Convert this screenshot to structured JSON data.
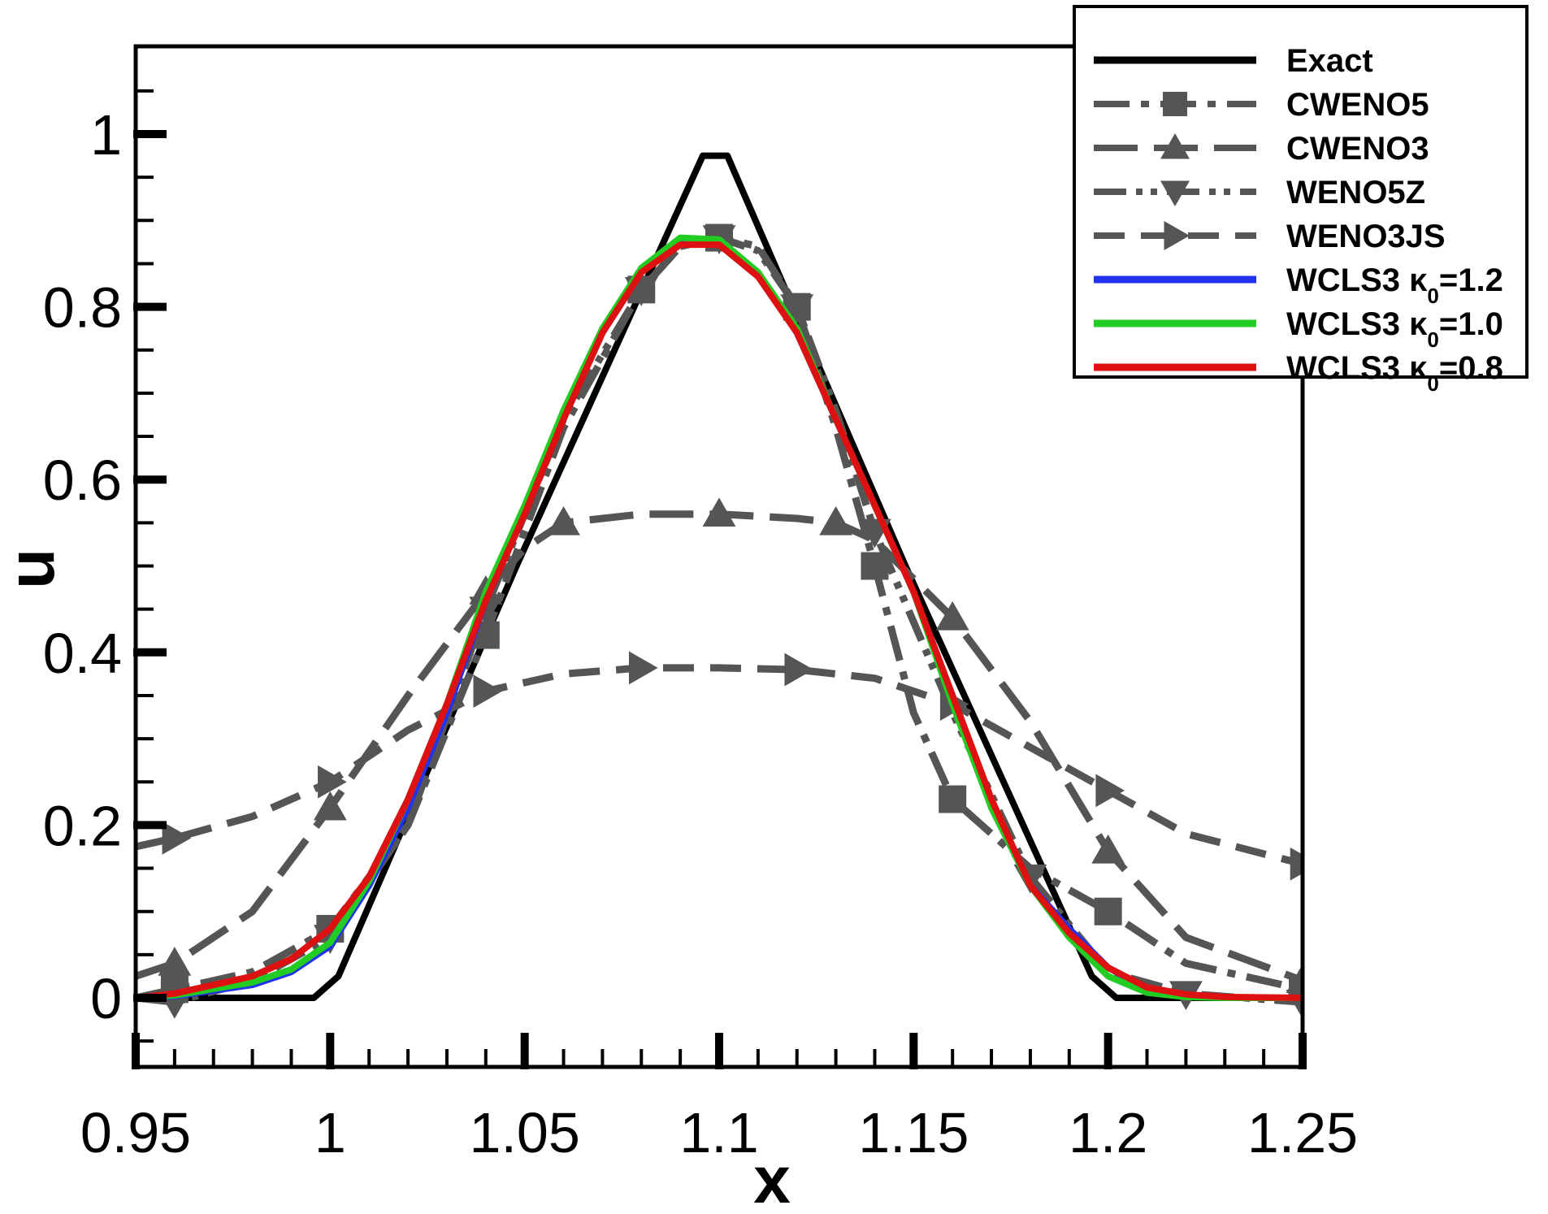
{
  "chart_data": {
    "type": "line",
    "title": "",
    "xlabel": "x",
    "ylabel": "u",
    "xlim": [
      0.95,
      1.25
    ],
    "ylim": [
      -0.08,
      1.1
    ],
    "x_ticks": [
      0.95,
      1.0,
      1.05,
      1.1,
      1.15,
      1.2,
      1.25
    ],
    "x_tick_labels": [
      "0.95",
      "1",
      "1.05",
      "1.1",
      "1.15",
      "1.2",
      "1.25"
    ],
    "y_ticks": [
      0,
      0.2,
      0.4,
      0.6,
      0.8,
      1.0
    ],
    "y_tick_labels": [
      "0",
      "0.2",
      "0.4",
      "0.6",
      "0.8",
      "1"
    ],
    "legend_position": "top-right",
    "series": [
      {
        "name": "Exact",
        "color": "#000000",
        "dash": "solid",
        "marker": "none",
        "x": [
          0.95,
          0.9958,
          1.0021,
          1.0479,
          1.0958,
          1.1021,
          1.1479,
          1.1958,
          1.2021,
          1.25
        ],
        "y": [
          0.0,
          0.0,
          0.025,
          0.5,
          0.975,
          0.975,
          0.5,
          0.025,
          0.0,
          0.0
        ]
      },
      {
        "name": "CWENO5",
        "color": "#555555",
        "dash": "dashdot",
        "marker": "square",
        "x": [
          0.95,
          0.96,
          0.98,
          1.0,
          1.02,
          1.04,
          1.06,
          1.08,
          1.09,
          1.1,
          1.11,
          1.12,
          1.13,
          1.14,
          1.15,
          1.16,
          1.18,
          1.2,
          1.22,
          1.25
        ],
        "y": [
          0.0,
          0.01,
          0.03,
          0.08,
          0.2,
          0.42,
          0.66,
          0.82,
          0.87,
          0.88,
          0.87,
          0.8,
          0.66,
          0.5,
          0.33,
          0.23,
          0.15,
          0.1,
          0.04,
          0.01
        ]
      },
      {
        "name": "CWENO3",
        "color": "#555555",
        "dash": "longdash",
        "marker": "triangle-up",
        "x": [
          0.95,
          0.96,
          0.98,
          1.0,
          1.02,
          1.04,
          1.05,
          1.06,
          1.08,
          1.1,
          1.12,
          1.13,
          1.14,
          1.16,
          1.18,
          1.2,
          1.22,
          1.25
        ],
        "y": [
          0.025,
          0.04,
          0.1,
          0.22,
          0.35,
          0.47,
          0.52,
          0.55,
          0.56,
          0.56,
          0.555,
          0.55,
          0.53,
          0.44,
          0.32,
          0.17,
          0.07,
          0.02
        ]
      },
      {
        "name": "WENO5Z",
        "color": "#555555",
        "dash": "dashdotdot",
        "marker": "triangle-down",
        "x": [
          0.95,
          0.96,
          0.98,
          1.0,
          1.02,
          1.04,
          1.06,
          1.08,
          1.09,
          1.1,
          1.11,
          1.12,
          1.13,
          1.14,
          1.16,
          1.18,
          1.2,
          1.22,
          1.25
        ],
        "y": [
          0.0,
          -0.005,
          0.02,
          0.07,
          0.2,
          0.45,
          0.67,
          0.82,
          0.87,
          0.88,
          0.865,
          0.8,
          0.68,
          0.54,
          0.33,
          0.14,
          0.03,
          0.005,
          -0.005
        ]
      },
      {
        "name": "WENO3JS",
        "color": "#555555",
        "dash": "dashed",
        "marker": "triangle-right",
        "x": [
          0.95,
          0.96,
          0.98,
          1.0,
          1.02,
          1.04,
          1.06,
          1.08,
          1.1,
          1.12,
          1.14,
          1.16,
          1.18,
          1.2,
          1.22,
          1.25
        ],
        "y": [
          0.175,
          0.185,
          0.21,
          0.25,
          0.31,
          0.355,
          0.375,
          0.382,
          0.382,
          0.38,
          0.37,
          0.34,
          0.29,
          0.24,
          0.19,
          0.155
        ]
      },
      {
        "name": "WCLS3 κ0=1.2",
        "color": "#2233ee",
        "dash": "solid",
        "marker": "none",
        "x": [
          0.95,
          0.96,
          0.98,
          0.99,
          1.0,
          1.01,
          1.02,
          1.03,
          1.04,
          1.05,
          1.06,
          1.07,
          1.08,
          1.09,
          1.1,
          1.11,
          1.12,
          1.13,
          1.14,
          1.15,
          1.16,
          1.17,
          1.18,
          1.19,
          1.2,
          1.21,
          1.22,
          1.23,
          1.25
        ],
        "y": [
          0.0,
          0.002,
          0.015,
          0.03,
          0.06,
          0.13,
          0.22,
          0.33,
          0.46,
          0.56,
          0.67,
          0.77,
          0.84,
          0.875,
          0.875,
          0.84,
          0.77,
          0.67,
          0.57,
          0.47,
          0.35,
          0.22,
          0.13,
          0.08,
          0.035,
          0.01,
          0.002,
          0.0,
          0.0
        ]
      },
      {
        "name": "WCLS3 κ0=1.0",
        "color": "#22cc22",
        "dash": "solid",
        "marker": "none",
        "x": [
          0.95,
          0.96,
          0.98,
          0.99,
          1.0,
          1.01,
          1.02,
          1.03,
          1.04,
          1.05,
          1.06,
          1.07,
          1.08,
          1.09,
          1.1,
          1.11,
          1.12,
          1.13,
          1.14,
          1.15,
          1.16,
          1.17,
          1.18,
          1.19,
          1.2,
          1.21,
          1.22,
          1.23,
          1.25
        ],
        "y": [
          0.0,
          0.003,
          0.018,
          0.033,
          0.064,
          0.135,
          0.23,
          0.34,
          0.47,
          0.57,
          0.68,
          0.775,
          0.845,
          0.88,
          0.878,
          0.84,
          0.775,
          0.67,
          0.57,
          0.47,
          0.34,
          0.22,
          0.13,
          0.07,
          0.025,
          0.006,
          0.001,
          0.0,
          0.0
        ]
      },
      {
        "name": "WCLS3 κ0=0.8",
        "color": "#dd1111",
        "dash": "solid",
        "marker": "none",
        "x": [
          0.95,
          0.96,
          0.98,
          0.99,
          1.0,
          1.01,
          1.02,
          1.03,
          1.04,
          1.05,
          1.06,
          1.07,
          1.08,
          1.09,
          1.1,
          1.11,
          1.12,
          1.13,
          1.14,
          1.15,
          1.16,
          1.17,
          1.18,
          1.19,
          1.2,
          1.21,
          1.22,
          1.23,
          1.25
        ],
        "y": [
          0.0,
          0.005,
          0.025,
          0.045,
          0.08,
          0.14,
          0.23,
          0.34,
          0.46,
          0.56,
          0.67,
          0.77,
          0.84,
          0.872,
          0.872,
          0.835,
          0.77,
          0.67,
          0.57,
          0.47,
          0.35,
          0.23,
          0.13,
          0.075,
          0.035,
          0.012,
          0.004,
          0.001,
          0.0
        ]
      }
    ],
    "legend": [
      {
        "label": "Exact",
        "sub": "",
        "tail": ""
      },
      {
        "label": "CWENO5",
        "sub": "",
        "tail": ""
      },
      {
        "label": "CWENO3",
        "sub": "",
        "tail": ""
      },
      {
        "label": "WENO5Z",
        "sub": "",
        "tail": ""
      },
      {
        "label": "WENO3JS",
        "sub": "",
        "tail": ""
      },
      {
        "label": "WCLS3 κ",
        "sub": "0",
        "tail": "=1.2"
      },
      {
        "label": "WCLS3 κ",
        "sub": "0",
        "tail": "=1.0"
      },
      {
        "label": "WCLS3 κ",
        "sub": "0",
        "tail": "=0.8"
      }
    ]
  }
}
